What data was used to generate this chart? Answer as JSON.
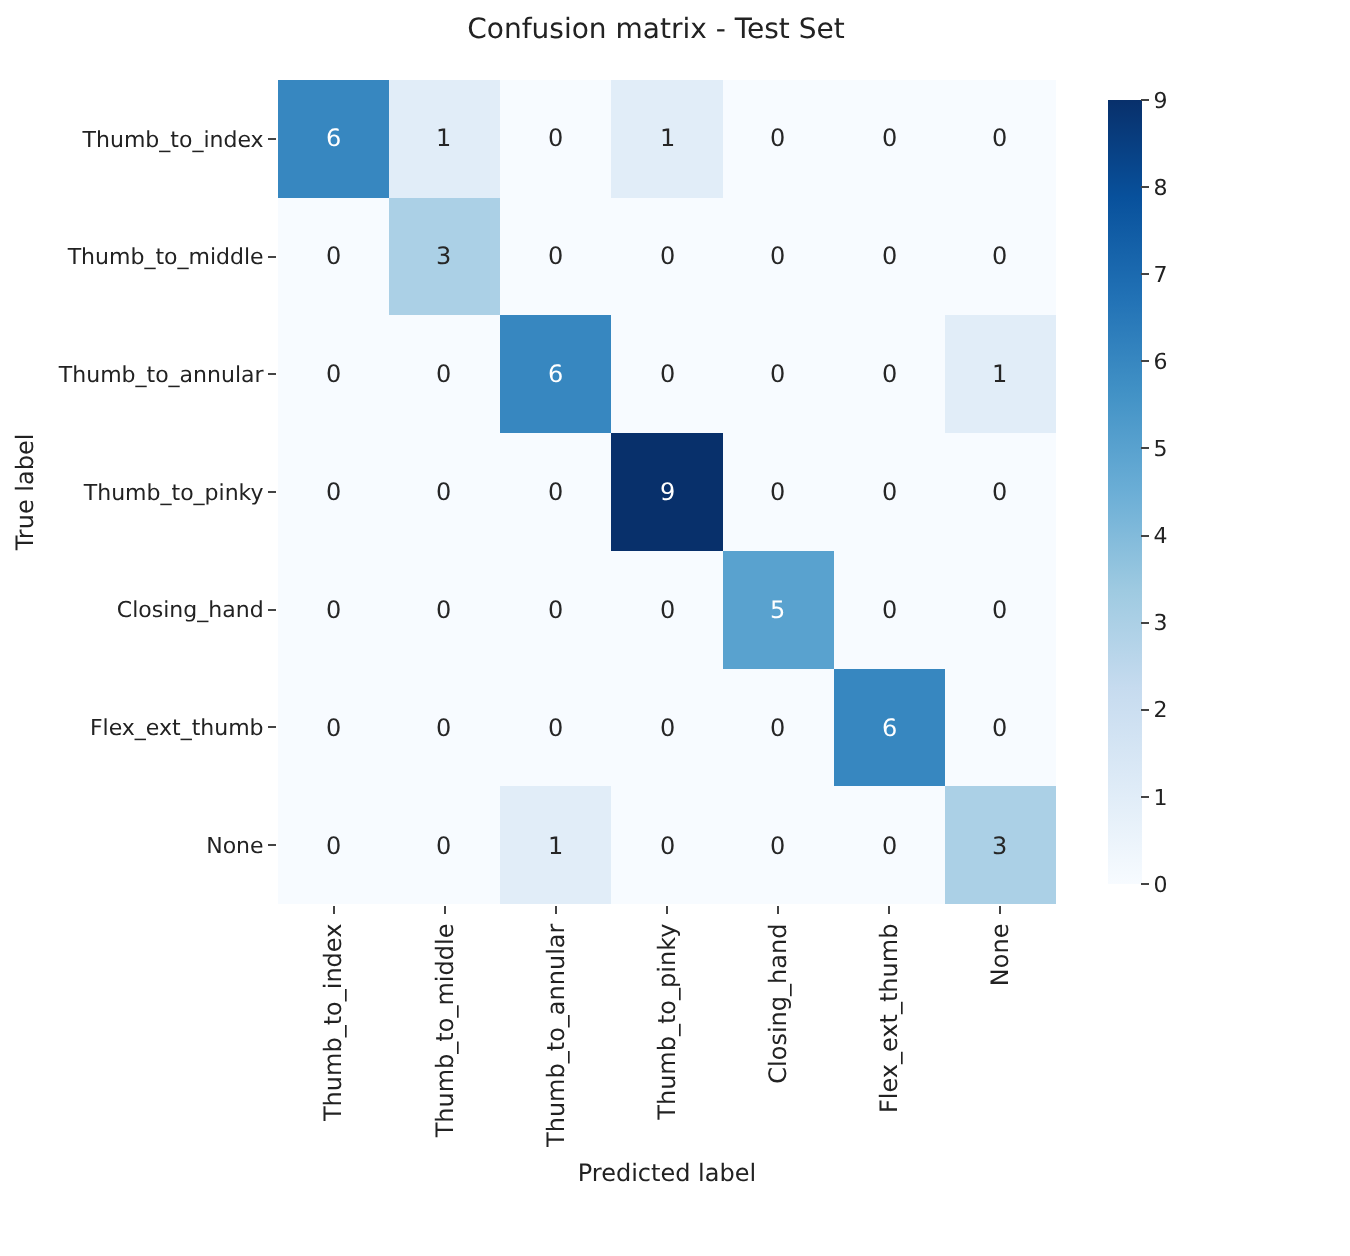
{
  "chart_data": {
    "type": "heatmap",
    "title": "Confusion matrix - Test Set",
    "xlabel": "Predicted label",
    "ylabel": "True label",
    "categories": [
      "Thumb_to_index",
      "Thumb_to_middle",
      "Thumb_to_annular",
      "Thumb_to_pinky",
      "Closing_hand",
      "Flex_ext_thumb",
      "None"
    ],
    "y_categories": [
      "Thumb_to_index",
      "Thumb_to_middle",
      "Thumb_to_annular",
      "Thumb_to_pinky",
      "Closing_hand",
      "Flex_ext_thumb",
      "None"
    ],
    "cells": [
      [
        6,
        1,
        0,
        1,
        0,
        0,
        0
      ],
      [
        0,
        3,
        0,
        0,
        0,
        0,
        0
      ],
      [
        0,
        0,
        6,
        0,
        0,
        0,
        1
      ],
      [
        0,
        0,
        0,
        9,
        0,
        0,
        0
      ],
      [
        0,
        0,
        0,
        0,
        5,
        0,
        0
      ],
      [
        0,
        0,
        0,
        0,
        0,
        6,
        0
      ],
      [
        0,
        0,
        1,
        0,
        0,
        0,
        3
      ]
    ],
    "clim": [
      0,
      9
    ],
    "cticks": [
      0,
      1,
      2,
      3,
      4,
      5,
      6,
      7,
      8,
      9
    ],
    "data_labels": true
  }
}
